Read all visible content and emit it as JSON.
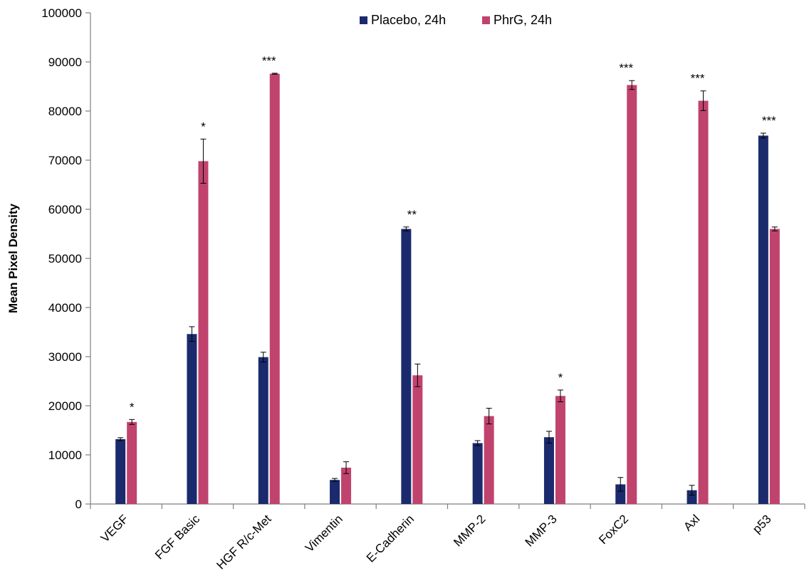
{
  "chart_data": {
    "type": "bar",
    "title": "",
    "xlabel": "",
    "ylabel": "Mean Pixel Density",
    "ylim": [
      0,
      100000
    ],
    "yticks": [
      0,
      10000,
      20000,
      30000,
      40000,
      50000,
      60000,
      70000,
      80000,
      90000,
      100000
    ],
    "grid": false,
    "legend_position": "top-center",
    "categories": [
      "VEGF",
      "FGF Basic",
      "HGF R/c-Met",
      "Vimentin",
      "E-Cadherin",
      "MMP-2",
      "MMP-3",
      "FoxC2",
      "Axl",
      "p53"
    ],
    "series": [
      {
        "name": "Placebo, 24h",
        "color": "#1a2a6c",
        "values": [
          13200,
          34600,
          29900,
          4900,
          56000,
          12400,
          13600,
          4000,
          2800,
          75000
        ],
        "errors": [
          300,
          1500,
          1000,
          300,
          400,
          500,
          1200,
          1400,
          1000,
          500
        ]
      },
      {
        "name": "PhrG, 24h",
        "color": "#c0436e",
        "values": [
          16700,
          69800,
          87600,
          7400,
          26200,
          17900,
          22000,
          85300,
          82100,
          56000
        ],
        "errors": [
          500,
          4500,
          100,
          1200,
          2300,
          1600,
          1200,
          900,
          2000,
          400
        ]
      }
    ],
    "annotations": [
      "*",
      "*",
      "***",
      "",
      "**",
      "",
      "*",
      "***",
      "***",
      "***"
    ]
  }
}
